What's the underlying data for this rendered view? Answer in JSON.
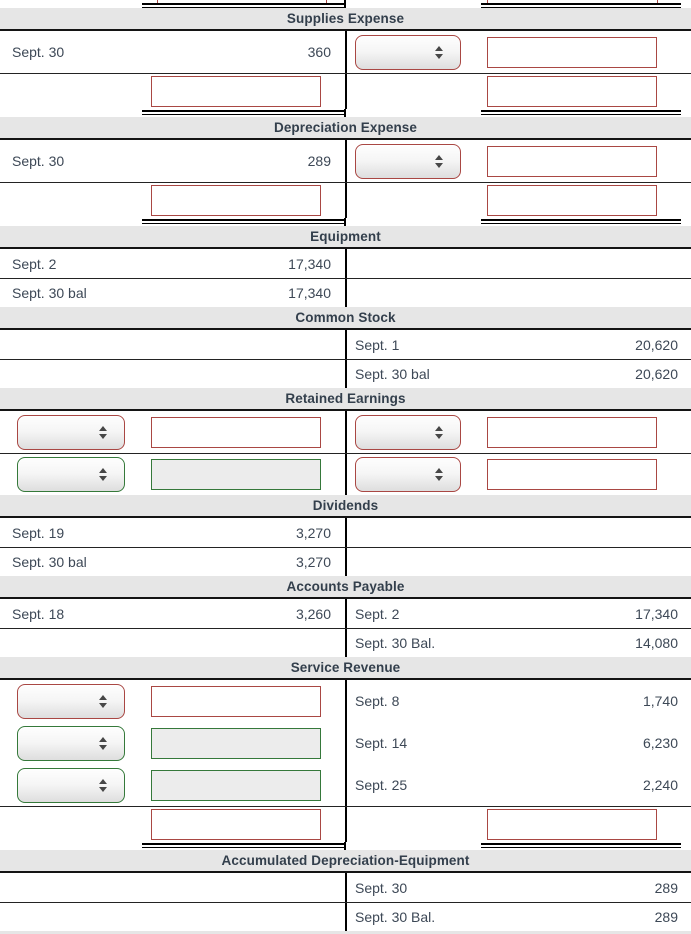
{
  "palette": {
    "accent_red": "#a94743",
    "accent_green": "#35793a",
    "header_bg": "#e6e6e6",
    "text": "#3d4856",
    "line": "#000000"
  },
  "accounts": [
    {
      "title": "Supplies Expense",
      "rule": true,
      "rows": [
        {
          "h": "control",
          "sep": false,
          "left": {
            "type": "entry",
            "date": "Sept. 30",
            "amount": "360"
          },
          "right": {
            "type": "fields",
            "select": "red",
            "input": "red"
          }
        },
        {
          "h": "inputonly",
          "sep": true,
          "left": {
            "type": "fields",
            "select": null,
            "input": "red"
          },
          "right": {
            "type": "fields",
            "select": null,
            "input": "red"
          }
        }
      ]
    },
    {
      "title": "Depreciation Expense",
      "rule": true,
      "rows": [
        {
          "h": "control",
          "sep": false,
          "left": {
            "type": "entry",
            "date": "Sept. 30",
            "amount": "289"
          },
          "right": {
            "type": "fields",
            "select": "red",
            "input": "red"
          }
        },
        {
          "h": "inputonly",
          "sep": true,
          "left": {
            "type": "fields",
            "select": null,
            "input": "red"
          },
          "right": {
            "type": "fields",
            "select": null,
            "input": "red"
          }
        }
      ]
    },
    {
      "title": "Equipment",
      "rule": false,
      "rows": [
        {
          "h": "entry",
          "sep": false,
          "left": {
            "type": "entry",
            "date": "Sept. 2",
            "amount": "17,340"
          },
          "right": null
        },
        {
          "h": "entry",
          "sep": true,
          "left": {
            "type": "entry",
            "date": "Sept. 30 bal",
            "amount": "17,340"
          },
          "right": null
        }
      ]
    },
    {
      "title": "Common Stock",
      "rule": false,
      "rows": [
        {
          "h": "entry",
          "sep": false,
          "left": null,
          "right": {
            "type": "entry",
            "date": "Sept. 1",
            "amount": "20,620"
          }
        },
        {
          "h": "entry",
          "sep": true,
          "left": null,
          "right": {
            "type": "entry",
            "date": "Sept. 30 bal",
            "amount": "20,620"
          }
        }
      ]
    },
    {
      "title": "Retained Earnings",
      "rule": false,
      "rows": [
        {
          "h": "control",
          "sep": false,
          "left": {
            "type": "fields",
            "select": "red",
            "input": "red"
          },
          "right": {
            "type": "fields",
            "select": "red",
            "input": "red"
          }
        },
        {
          "h": "control",
          "sep": true,
          "left": {
            "type": "fields",
            "select": "green",
            "input": "green"
          },
          "right": {
            "type": "fields",
            "select": "red",
            "input": "red"
          }
        }
      ]
    },
    {
      "title": "Dividends",
      "rule": false,
      "rows": [
        {
          "h": "entry",
          "sep": false,
          "left": {
            "type": "entry",
            "date": "Sept. 19",
            "amount": "3,270"
          },
          "right": null
        },
        {
          "h": "entry",
          "sep": true,
          "left": {
            "type": "entry",
            "date": "Sept. 30 bal",
            "amount": "3,270"
          },
          "right": null
        }
      ]
    },
    {
      "title": "Accounts Payable",
      "rule": false,
      "rows": [
        {
          "h": "entry",
          "sep": false,
          "left": {
            "type": "entry",
            "date": "Sept. 18",
            "amount": "3,260"
          },
          "right": {
            "type": "entry",
            "date": "Sept. 2",
            "amount": "17,340"
          }
        },
        {
          "h": "entry",
          "sep": true,
          "left": null,
          "right": {
            "type": "entry",
            "date": "Sept. 30 Bal.",
            "amount": "14,080"
          }
        }
      ]
    },
    {
      "title": "Service Revenue",
      "rule": true,
      "rows": [
        {
          "h": "control",
          "sep": false,
          "left": {
            "type": "fields",
            "select": "red",
            "input": "red"
          },
          "right": {
            "type": "entry",
            "date": "Sept. 8",
            "amount": "1,740"
          }
        },
        {
          "h": "control",
          "sep": false,
          "left": {
            "type": "fields",
            "select": "green",
            "input": "green"
          },
          "right": {
            "type": "entry",
            "date": "Sept. 14",
            "amount": "6,230"
          }
        },
        {
          "h": "control",
          "sep": false,
          "left": {
            "type": "fields",
            "select": "green",
            "input": "green"
          },
          "right": {
            "type": "entry",
            "date": "Sept. 25",
            "amount": "2,240"
          }
        },
        {
          "h": "inputonly",
          "sep": true,
          "left": {
            "type": "fields",
            "select": null,
            "input": "red"
          },
          "right": {
            "type": "fields",
            "select": null,
            "input": "red"
          }
        }
      ]
    },
    {
      "title": "Accumulated Depreciation-Equipment",
      "rule": false,
      "rows": [
        {
          "h": "entry",
          "sep": false,
          "left": null,
          "right": {
            "type": "entry",
            "date": "Sept. 30",
            "amount": "289"
          }
        },
        {
          "h": "entry",
          "sep": true,
          "left": null,
          "right": {
            "type": "entry",
            "date": "Sept. 30 Bal.",
            "amount": "289"
          }
        }
      ]
    }
  ]
}
